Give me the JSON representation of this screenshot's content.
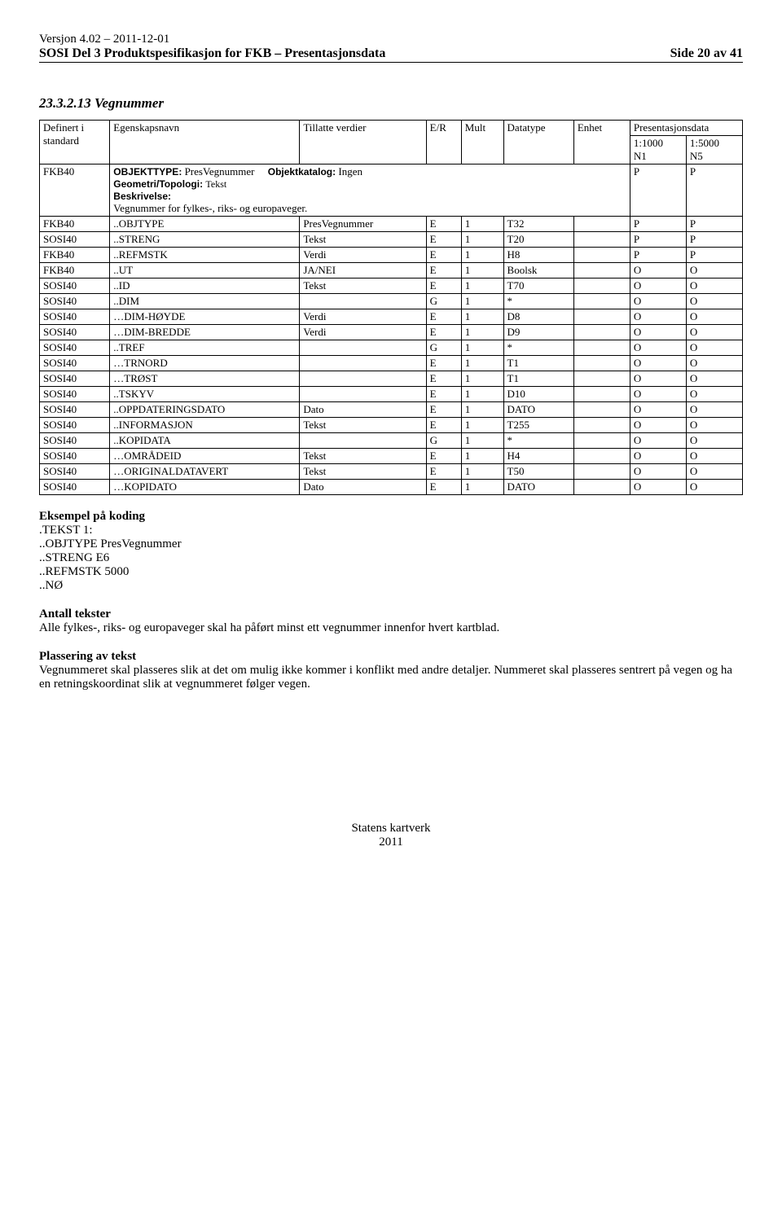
{
  "header": {
    "version": "Versjon 4.02 – 2011-12-01",
    "title": "SOSI Del 3 Produktspesifikasjon for FKB – Presentasjonsdata",
    "page": "Side 20 av 41"
  },
  "section": {
    "number": "23.3.2.13",
    "name": "Vegnummer"
  },
  "table": {
    "headers": {
      "std": "Definert i standard",
      "egen": "Egenskapsnavn",
      "till": "Tillatte verdier",
      "er": "E/R",
      "mult": "Mult",
      "dtype": "Datatype",
      "enhet": "Enhet",
      "pres": "Presentasjonsdata"
    },
    "subheaders": {
      "p1a": "1:1000",
      "p1b": "N1",
      "p2a": "1:5000",
      "p2b": "N5"
    },
    "objrow": {
      "std": "FKB40",
      "obj_label": "OBJEKTTYPE:",
      "obj_val": "PresVegnummer",
      "kat_label": "Objektkatalog:",
      "kat_val": "Ingen",
      "geom_label": "Geometri/Topologi:",
      "geom_val": "Tekst",
      "besk_label": "Beskrivelse:",
      "besk_text": "Vegnummer for fylkes-, riks- og europaveger.",
      "p1": "P",
      "p2": "P"
    },
    "rows": [
      {
        "std": "FKB40",
        "egen": "..OBJTYPE",
        "till": "PresVegnummer",
        "er": "E",
        "mult": "1",
        "dtype": "T32",
        "enhet": "",
        "p1": "P",
        "p2": "P"
      },
      {
        "std": "SOSI40",
        "egen": "..STRENG",
        "till": "Tekst",
        "er": "E",
        "mult": "1",
        "dtype": "T20",
        "enhet": "",
        "p1": "P",
        "p2": "P"
      },
      {
        "std": "FKB40",
        "egen": "..REFMSTK",
        "till": "Verdi",
        "er": "E",
        "mult": "1",
        "dtype": "H8",
        "enhet": "",
        "p1": "P",
        "p2": "P"
      },
      {
        "std": "FKB40",
        "egen": "..UT",
        "till": "JA/NEI",
        "er": "E",
        "mult": "1",
        "dtype": "Boolsk",
        "enhet": "",
        "p1": "O",
        "p2": "O"
      },
      {
        "std": "SOSI40",
        "egen": "..ID",
        "till": "Tekst",
        "er": "E",
        "mult": "1",
        "dtype": "T70",
        "enhet": "",
        "p1": "O",
        "p2": "O"
      },
      {
        "std": "SOSI40",
        "egen": "..DIM",
        "till": "",
        "er": "G",
        "mult": "1",
        "dtype": "*",
        "enhet": "",
        "p1": "O",
        "p2": "O"
      },
      {
        "std": "SOSI40",
        "egen": "…DIM-HØYDE",
        "till": "Verdi",
        "er": "E",
        "mult": "1",
        "dtype": "D8",
        "enhet": "",
        "p1": "O",
        "p2": "O"
      },
      {
        "std": "SOSI40",
        "egen": "…DIM-BREDDE",
        "till": "Verdi",
        "er": "E",
        "mult": "1",
        "dtype": "D9",
        "enhet": "",
        "p1": "O",
        "p2": "O"
      },
      {
        "std": "SOSI40",
        "egen": "..TREF",
        "till": "",
        "er": "G",
        "mult": "1",
        "dtype": "*",
        "enhet": "",
        "p1": "O",
        "p2": "O"
      },
      {
        "std": "SOSI40",
        "egen": "…TRNORD",
        "till": "",
        "er": "E",
        "mult": "1",
        "dtype": "T1",
        "enhet": "",
        "p1": "O",
        "p2": "O"
      },
      {
        "std": "SOSI40",
        "egen": "…TRØST",
        "till": "",
        "er": "E",
        "mult": "1",
        "dtype": "T1",
        "enhet": "",
        "p1": "O",
        "p2": "O"
      },
      {
        "std": "SOSI40",
        "egen": "..TSKYV",
        "till": "",
        "er": "E",
        "mult": "1",
        "dtype": "D10",
        "enhet": "",
        "p1": "O",
        "p2": "O"
      },
      {
        "std": "SOSI40",
        "egen": "..OPPDATERINGSDATO",
        "till": "Dato",
        "er": "E",
        "mult": "1",
        "dtype": "DATO",
        "enhet": "",
        "p1": "O",
        "p2": "O"
      },
      {
        "std": "SOSI40",
        "egen": "..INFORMASJON",
        "till": "Tekst",
        "er": "E",
        "mult": "1",
        "dtype": "T255",
        "enhet": "",
        "p1": "O",
        "p2": "O"
      },
      {
        "std": "SOSI40",
        "egen": "..KOPIDATA",
        "till": "",
        "er": "G",
        "mult": "1",
        "dtype": "*",
        "enhet": "",
        "p1": "O",
        "p2": "O"
      },
      {
        "std": "SOSI40",
        "egen": "…OMRÅDEID",
        "till": "Tekst",
        "er": "E",
        "mult": "1",
        "dtype": "H4",
        "enhet": "",
        "p1": "O",
        "p2": "O"
      },
      {
        "std": "SOSI40",
        "egen": "…ORIGINALDATAVERT",
        "till": "Tekst",
        "er": "E",
        "mult": "1",
        "dtype": "T50",
        "enhet": "",
        "p1": "O",
        "p2": "O"
      },
      {
        "std": "SOSI40",
        "egen": "…KOPIDATO",
        "till": "Dato",
        "er": "E",
        "mult": "1",
        "dtype": "DATO",
        "enhet": "",
        "p1": "O",
        "p2": "O"
      }
    ]
  },
  "example": {
    "heading": "Eksempel på koding",
    "lines": [
      ".TEKST  1:",
      "..OBJTYPE PresVegnummer",
      "..STRENG E6",
      "..REFMSTK 5000",
      "..NØ"
    ]
  },
  "antall": {
    "heading": "Antall tekster",
    "text": "Alle fylkes-, riks- og europaveger skal ha påført minst ett vegnummer innenfor hvert kartblad."
  },
  "plassering": {
    "heading": "Plassering av tekst",
    "text": "Vegnummeret skal plasseres slik at det om mulig ikke kommer i konflikt med andre detaljer. Nummeret skal plasseres sentrert på vegen og ha en retningskoordinat slik at vegnummeret følger vegen."
  },
  "footer": {
    "org": "Statens kartverk",
    "year": "2011"
  }
}
